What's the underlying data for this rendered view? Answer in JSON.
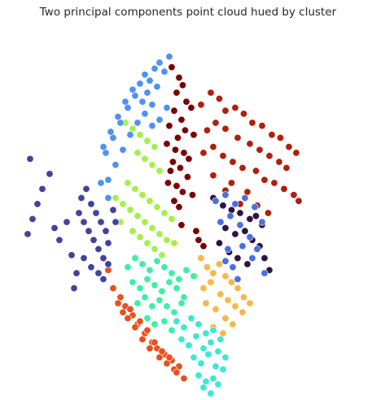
{
  "chart_data": {
    "type": "scatter",
    "title": "Two principal components point cloud hued by cluster",
    "xlabel": "",
    "ylabel": "",
    "axes_visible": false,
    "grid": false,
    "legend": "none",
    "series": [
      {
        "color": "#7a0000",
        "x": [
          -0.14,
          -0.08,
          -0.05,
          -0.1,
          -0.02,
          0.02,
          -0.12,
          -0.06,
          -0.16,
          -0.03,
          0.04,
          -0.09,
          -0.18,
          -0.11,
          -0.04,
          0.0,
          -0.13,
          -0.07,
          -0.15,
          -0.01,
          -0.17,
          -0.1,
          -0.05,
          0.03,
          -0.12,
          -0.08,
          -0.2,
          -0.14,
          -0.06,
          0.06,
          0.08,
          0.12
        ],
        "y": [
          0.97,
          0.9,
          0.85,
          0.8,
          0.74,
          0.7,
          0.68,
          0.62,
          0.58,
          0.55,
          0.52,
          0.5,
          0.46,
          0.42,
          0.4,
          0.36,
          0.34,
          0.3,
          0.28,
          0.24,
          0.2,
          0.18,
          0.14,
          0.12,
          0.08,
          0.04,
          0.0,
          -0.04,
          -0.08,
          -0.12,
          -0.18,
          -0.22
        ]
      },
      {
        "color": "#b01f0d",
        "x": [
          0.1,
          0.18,
          0.25,
          0.3,
          0.38,
          0.45,
          0.52,
          0.6,
          0.68,
          0.75,
          0.82,
          0.88,
          0.15,
          0.22,
          0.3,
          0.4,
          0.5,
          0.58,
          0.66,
          0.74,
          0.8,
          0.12,
          0.2,
          0.28,
          0.36,
          0.44,
          0.55,
          0.62,
          0.7,
          0.78,
          0.86,
          0.9,
          0.35,
          0.48,
          0.2,
          0.3,
          0.42,
          0.56,
          0.65
        ],
        "y": [
          0.72,
          0.8,
          0.76,
          0.68,
          0.7,
          0.66,
          0.6,
          0.58,
          0.52,
          0.5,
          0.44,
          0.4,
          0.55,
          0.6,
          0.56,
          0.5,
          0.46,
          0.42,
          0.38,
          0.34,
          0.3,
          0.4,
          0.44,
          0.38,
          0.34,
          0.3,
          0.28,
          0.22,
          0.2,
          0.16,
          0.12,
          0.08,
          0.2,
          0.14,
          0.25,
          0.15,
          0.06,
          0.05,
          0.0
        ]
      },
      {
        "color": "#2e1443",
        "x": [
          0.2,
          0.28,
          0.35,
          0.42,
          0.5,
          0.55,
          0.6,
          0.3,
          0.38,
          0.46,
          0.52,
          0.58,
          0.25,
          0.33,
          0.4,
          0.48,
          0.62,
          0.66
        ],
        "y": [
          0.1,
          0.05,
          0.02,
          0.0,
          -0.04,
          -0.02,
          -0.08,
          -0.1,
          -0.14,
          -0.12,
          -0.18,
          -0.22,
          -0.2,
          -0.26,
          -0.3,
          -0.34,
          -0.3,
          -0.38
        ]
      },
      {
        "color": "#4a6fe3",
        "x": [
          0.22,
          0.3,
          0.38,
          0.46,
          0.54,
          0.6,
          0.26,
          0.34,
          0.42,
          0.5,
          0.56,
          0.62,
          0.32,
          0.44,
          0.52,
          0.36,
          0.4,
          0.3
        ],
        "y": [
          0.08,
          0.12,
          0.06,
          0.1,
          0.04,
          -0.06,
          -0.06,
          -0.02,
          -0.08,
          -0.16,
          -0.24,
          -0.4,
          -0.24,
          -0.22,
          -0.3,
          -0.36,
          -0.44,
          -0.32
        ]
      },
      {
        "color": "#f7b84a",
        "x": [
          0.1,
          0.15,
          0.2,
          0.25,
          0.3,
          0.35,
          0.4,
          0.45,
          0.05,
          0.12,
          0.18,
          0.26,
          0.32,
          0.38,
          0.44,
          0.14,
          0.22,
          0.3,
          0.36,
          0.2,
          0.28,
          0.5
        ],
        "y": [
          -0.3,
          -0.36,
          -0.4,
          -0.34,
          -0.42,
          -0.46,
          -0.5,
          -0.56,
          -0.42,
          -0.5,
          -0.46,
          -0.54,
          -0.58,
          -0.62,
          -0.66,
          -0.6,
          -0.64,
          -0.7,
          -0.74,
          -0.76,
          -0.8,
          -0.6
        ]
      },
      {
        "color": "#3de8d2",
        "x": [
          -0.1,
          -0.04,
          0.02,
          0.08,
          0.14,
          0.2,
          0.26,
          -0.06,
          0.0,
          0.06,
          0.12,
          0.18,
          0.24,
          0.3,
          0.04,
          0.1,
          0.16,
          0.22,
          0.28,
          0.08,
          0.14,
          0.2,
          0.12,
          0.18,
          0.24
        ],
        "y": [
          -0.72,
          -0.76,
          -0.7,
          -0.74,
          -0.8,
          -0.78,
          -0.84,
          -0.84,
          -0.88,
          -0.82,
          -0.9,
          -0.86,
          -0.92,
          -0.96,
          -0.96,
          -1.0,
          -0.94,
          -1.02,
          -1.04,
          -1.08,
          -1.12,
          -1.1,
          -1.16,
          -1.2,
          -1.14
        ]
      },
      {
        "color": "#3df0a4",
        "x": [
          -0.5,
          -0.44,
          -0.38,
          -0.32,
          -0.26,
          -0.2,
          -0.14,
          -0.08,
          -0.02,
          0.04,
          -0.46,
          -0.4,
          -0.34,
          -0.28,
          -0.22,
          -0.16,
          -0.1,
          -0.04,
          -0.42,
          -0.36,
          -0.3,
          -0.24,
          -0.18,
          -0.12,
          -0.06,
          -0.34,
          -0.28,
          -0.2,
          -0.14
        ],
        "y": [
          -0.36,
          -0.3,
          -0.34,
          -0.38,
          -0.32,
          -0.36,
          -0.4,
          -0.44,
          -0.38,
          -0.42,
          -0.46,
          -0.5,
          -0.44,
          -0.48,
          -0.52,
          -0.46,
          -0.5,
          -0.56,
          -0.6,
          -0.56,
          -0.62,
          -0.58,
          -0.62,
          -0.66,
          -0.6,
          -0.7,
          -0.74,
          -0.72,
          -0.78
        ]
      },
      {
        "color": "#e8501e",
        "x": [
          -0.62,
          -0.56,
          -0.52,
          -0.46,
          -0.42,
          -0.36,
          -0.3,
          -0.26,
          -0.2,
          -0.14,
          -0.08,
          -0.58,
          -0.5,
          -0.44,
          -0.38,
          -0.32,
          -0.24,
          -0.18,
          -0.12,
          -0.66,
          -0.7,
          -0.48,
          -0.4,
          -0.34,
          -0.28,
          -0.22,
          -0.16,
          -0.1,
          -0.04,
          -0.54
        ],
        "y": [
          -0.5,
          -0.56,
          -0.62,
          -0.68,
          -0.74,
          -0.8,
          -0.86,
          -0.9,
          -0.94,
          -0.98,
          -1.02,
          -0.6,
          -0.7,
          -0.76,
          -0.84,
          -0.9,
          -0.96,
          -1.0,
          -1.04,
          -0.38,
          -0.3,
          -0.64,
          -0.72,
          -0.78,
          -0.86,
          -0.92,
          -0.96,
          -1.06,
          -1.1,
          -0.66
        ]
      },
      {
        "color": "#a4f04a",
        "x": [
          -0.6,
          -0.54,
          -0.48,
          -0.42,
          -0.36,
          -0.3,
          -0.24,
          -0.18,
          -0.12,
          -0.5,
          -0.44,
          -0.38,
          -0.32,
          -0.26,
          -0.2,
          -0.14,
          -0.56,
          -0.46,
          -0.4,
          -0.34,
          -0.28,
          -0.22,
          -0.42,
          -0.36,
          -0.3,
          -0.24,
          -0.52,
          -0.46,
          -0.4,
          -0.34,
          -0.28
        ],
        "y": [
          0.1,
          0.06,
          0.02,
          -0.02,
          -0.06,
          -0.1,
          -0.14,
          -0.18,
          -0.2,
          0.2,
          0.16,
          0.12,
          0.08,
          0.04,
          0.0,
          -0.04,
          -0.06,
          -0.12,
          -0.16,
          -0.2,
          -0.24,
          -0.28,
          0.4,
          0.36,
          0.32,
          0.28,
          0.6,
          0.56,
          0.52,
          0.48,
          0.44
        ]
      },
      {
        "color": "#4f92f2",
        "x": [
          -0.4,
          -0.36,
          -0.32,
          -0.28,
          -0.24,
          -0.2,
          -0.16,
          -0.44,
          -0.5,
          -0.56,
          -0.62,
          -0.68,
          -0.46,
          -0.52,
          -0.58,
          -0.64,
          -0.7,
          -0.38,
          -0.34,
          -0.3,
          -0.26,
          -0.48,
          -0.54,
          -0.6,
          -0.66,
          -0.42,
          -0.36,
          -0.3,
          -0.24,
          -0.18,
          -0.72,
          -0.66
        ],
        "y": [
          0.86,
          0.92,
          0.88,
          0.96,
          1.0,
          0.94,
          1.04,
          0.78,
          0.7,
          0.6,
          0.5,
          0.4,
          0.82,
          0.74,
          0.64,
          0.54,
          0.44,
          0.74,
          0.8,
          0.72,
          0.84,
          0.52,
          0.42,
          0.32,
          0.22,
          0.6,
          0.66,
          0.58,
          0.62,
          0.7,
          0.2,
          0.1
        ]
      },
      {
        "color": "#41449b",
        "x": [
          -0.9,
          -0.86,
          -0.82,
          -0.78,
          -0.74,
          -0.7,
          -0.66,
          -0.88,
          -0.84,
          -0.8,
          -0.76,
          -0.72,
          -0.68,
          -0.86,
          -0.8,
          -0.74,
          -0.7,
          -0.66,
          -1.2,
          -1.24,
          -1.28,
          -1.32,
          -1.1,
          -1.06,
          -1.0,
          -0.96,
          -1.14,
          -1.3,
          -0.92,
          -0.94,
          -0.6,
          -0.62
        ],
        "y": [
          0.0,
          -0.06,
          -0.12,
          -0.18,
          -0.24,
          -0.3,
          -0.2,
          0.1,
          0.16,
          0.06,
          0.0,
          -0.06,
          -0.12,
          -0.3,
          -0.36,
          -0.4,
          -0.44,
          -0.34,
          0.16,
          0.06,
          -0.04,
          -0.14,
          -0.1,
          -0.18,
          -0.06,
          -0.28,
          0.26,
          0.36,
          -0.4,
          -0.5,
          -0.06,
          0.02
        ]
      }
    ]
  }
}
